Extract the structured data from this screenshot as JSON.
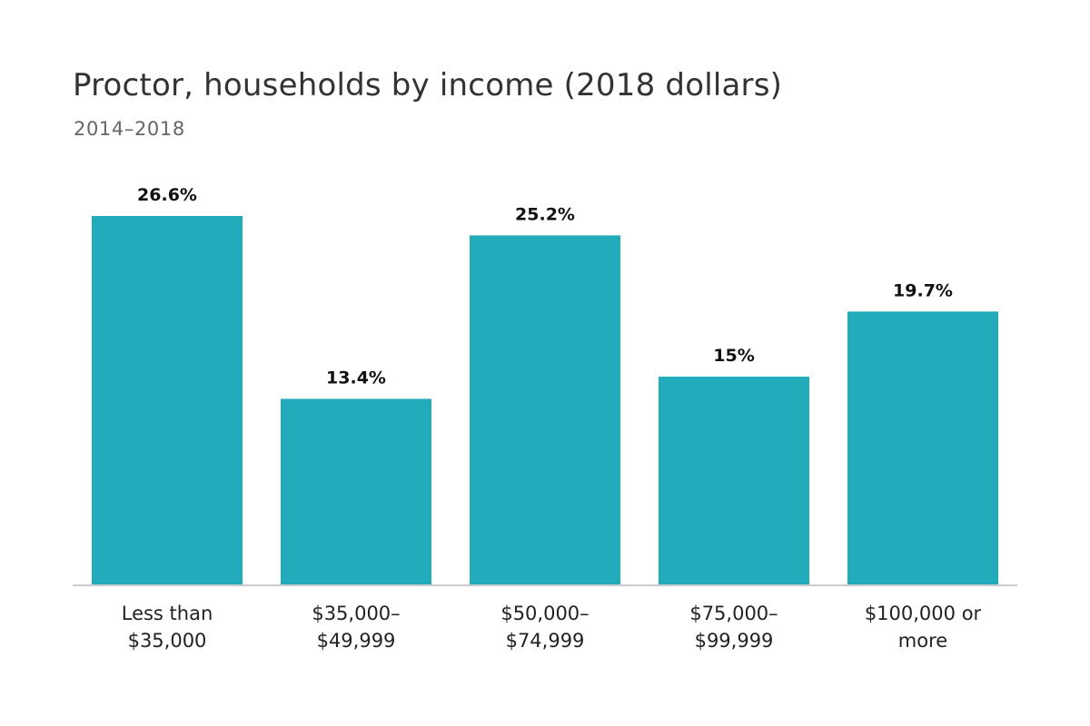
{
  "chart_data": {
    "type": "bar",
    "title": "Proctor, households by income (2018 dollars)",
    "subtitle": "2014–2018",
    "categories": [
      [
        "Less than",
        "$35,000"
      ],
      [
        "$35,000–",
        "$49,999"
      ],
      [
        "$50,000–",
        "$74,999"
      ],
      [
        "$75,000–",
        "$99,999"
      ],
      [
        "$100,000 or",
        "more"
      ]
    ],
    "values": [
      26.6,
      13.4,
      25.2,
      15,
      19.7
    ],
    "data_labels": [
      "26.6%",
      "13.4%",
      "25.2%",
      "15%",
      "19.7%"
    ],
    "ylim": [
      0,
      26.6
    ],
    "xlabel": "",
    "ylabel": "",
    "grid": false,
    "bar_color": "#21abbb"
  }
}
